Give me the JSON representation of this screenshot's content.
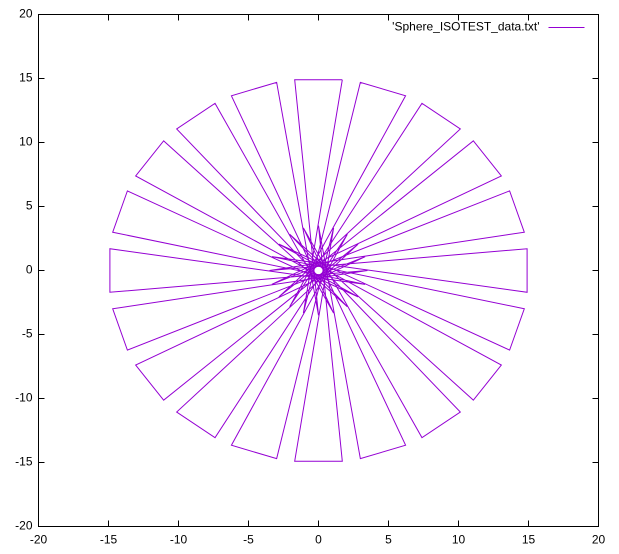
{
  "chart_data": {
    "type": "line",
    "x": [
      1.7,
      -1.7,
      0,
      -2.99,
      -6.22,
      1.08,
      -7.39,
      -10.13,
      2.06,
      -11.06,
      -13.06,
      2.83,
      -13.65,
      -14.7,
      3.33,
      -14.9,
      -14.9,
      3.5,
      -14.7,
      -13.65,
      3.33,
      -13.06,
      -11.06,
      2.83,
      -10.13,
      -7.39,
      2.06,
      -6.22,
      -2.99,
      1.08,
      -1.7,
      1.7,
      0,
      2.99,
      6.22,
      -1.08,
      7.39,
      10.13,
      -2.06,
      11.06,
      13.06,
      -2.83,
      13.65,
      14.7,
      -3.33,
      14.9,
      14.9,
      -3.5,
      14.7,
      13.65,
      -3.33,
      13.06,
      11.06,
      -2.83,
      10.13,
      7.39,
      -2.06,
      6.22,
      2.99,
      -1.08,
      1.7
    ],
    "series": [
      {
        "name": "'Sphere_ISOTEST_data.txt'",
        "color": "#9400d3",
        "values": [
          14.9,
          14.9,
          -3.5,
          14.7,
          13.65,
          -3.33,
          13.06,
          11.06,
          -2.83,
          10.13,
          7.39,
          -2.06,
          6.22,
          2.99,
          -1.08,
          1.7,
          -1.7,
          0,
          -2.99,
          -6.22,
          1.08,
          -7.39,
          -10.13,
          2.06,
          -11.06,
          -13.06,
          2.83,
          -13.65,
          -14.7,
          3.33,
          -14.9,
          -14.9,
          3.5,
          -14.7,
          -13.65,
          3.33,
          -13.06,
          -11.06,
          2.83,
          -10.13,
          -7.39,
          2.06,
          -6.22,
          -2.99,
          1.08,
          -1.7,
          1.7,
          0,
          2.99,
          6.22,
          -1.08,
          7.39,
          10.13,
          -2.06,
          11.06,
          13.06,
          -2.83,
          13.65,
          14.7,
          -3.33,
          14.9
        ]
      }
    ],
    "xlim": [
      -20,
      20
    ],
    "ylim": [
      -20,
      20
    ],
    "xticks": [
      -20,
      -15,
      -10,
      -5,
      0,
      5,
      10,
      15,
      20
    ],
    "yticks": [
      -20,
      -15,
      -10,
      -5,
      0,
      5,
      10,
      15,
      20
    ],
    "legend": "top-right"
  }
}
